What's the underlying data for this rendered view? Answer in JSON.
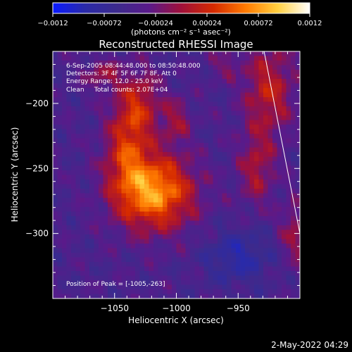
{
  "chart_data": {
    "type": "heatmap",
    "title": "Reconstructed RHESSI Image",
    "colorbar": {
      "ticks": [
        "-0.0012",
        "-0.00072",
        "-0.00024",
        "0.00024",
        "0.00072",
        "0.0012"
      ],
      "min": -0.0012,
      "max": 0.0012,
      "unit_label": "(photons cm⁻² s⁻¹ asec⁻²)",
      "colormap": [
        "#0a1aff",
        "#2a2aa8",
        "#3c2a8c",
        "#5a1a8a",
        "#a0103a",
        "#d52a00",
        "#ff7a00",
        "#ffd040",
        "#ffffff"
      ]
    },
    "xlabel": "Heliocentric X (arcsec)",
    "ylabel": "Heliocentric Y (arcsec)",
    "xlim": [
      -1100,
      -900
    ],
    "ylim": [
      -350,
      -160
    ],
    "x_ticks": [
      -1050,
      -1000,
      -950
    ],
    "x_tick_labels": [
      "−1050",
      "−1000",
      "−950"
    ],
    "y_ticks": [
      -200,
      -250,
      -300
    ],
    "y_tick_labels": [
      "−200",
      "−250",
      "−300"
    ],
    "annotations": [
      "6-Sep-2005 08:44:48.000 to 08:50:48.000",
      "Detectors: 3F 4F 5F 6F 7F 8F, Att 0",
      "Energy Range: 12.0 - 25.0 keV",
      "Clean     Total counts: 2.07E+04"
    ],
    "peak_label": "Position of Peak = [-1005,-263]",
    "peak": {
      "x": -1005,
      "y": -263
    },
    "sources": [
      {
        "x": -1018,
        "y": -268,
        "sx": 22,
        "sy": 20,
        "amp": 0.00115
      },
      {
        "x": -1040,
        "y": -235,
        "sx": 12,
        "sy": 24,
        "amp": 0.00062
      },
      {
        "x": -1030,
        "y": -200,
        "sx": 12,
        "sy": 18,
        "amp": 0.00055
      },
      {
        "x": -1000,
        "y": -213,
        "sx": 8,
        "sy": 12,
        "amp": 0.0004
      },
      {
        "x": -1060,
        "y": -178,
        "sx": 10,
        "sy": 8,
        "amp": 0.0004
      },
      {
        "x": -925,
        "y": -190,
        "sx": 14,
        "sy": 25,
        "amp": 0.00058
      },
      {
        "x": -935,
        "y": -250,
        "sx": 10,
        "sy": 20,
        "amp": 0.00046
      },
      {
        "x": -905,
        "y": -300,
        "sx": 8,
        "sy": 18,
        "amp": 0.0004
      },
      {
        "x": -960,
        "y": -170,
        "sx": 10,
        "sy": 8,
        "amp": 0.00025
      }
    ],
    "limb_line": [
      [
        -929,
        -160
      ],
      [
        -900,
        -300
      ]
    ]
  },
  "footer": {
    "date": "2-May-2022 04:29"
  }
}
